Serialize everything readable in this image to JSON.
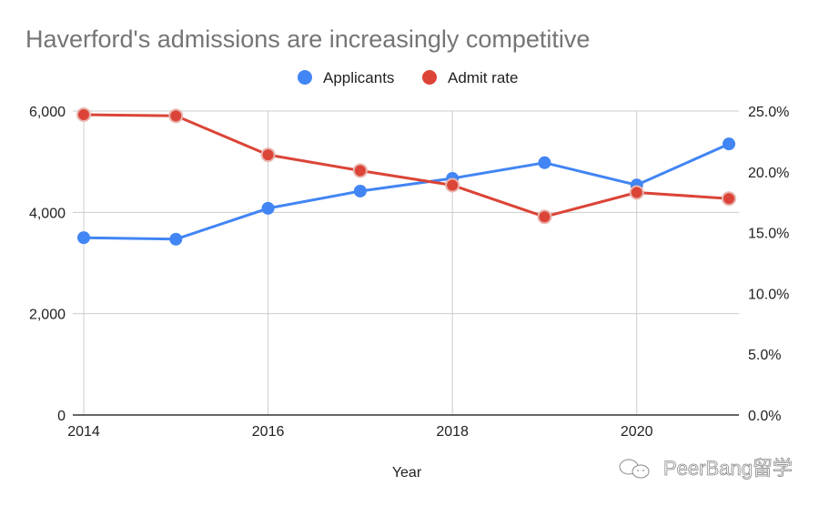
{
  "chart_data": {
    "type": "line",
    "title": "Haverford's admissions are increasingly competitive",
    "xlabel": "Year",
    "ylabel_left": "",
    "ylabel_right": "",
    "x": [
      2014,
      2015,
      2016,
      2017,
      2018,
      2019,
      2020,
      2021
    ],
    "x_ticks": [
      "2014",
      "2016",
      "2018",
      "2020"
    ],
    "x_range": [
      2014,
      2021
    ],
    "y_left_range": [
      0,
      6000
    ],
    "y_left_ticks": [
      "0",
      "2,000",
      "4,000",
      "6,000"
    ],
    "y_right_range": [
      0,
      25
    ],
    "y_right_ticks": [
      "0.0%",
      "5.0%",
      "10.0%",
      "15.0%",
      "20.0%",
      "25.0%"
    ],
    "grid": true,
    "legend_position": "top",
    "series": [
      {
        "name": "Applicants",
        "axis": "left",
        "color": "#4285f4",
        "values": [
          3500,
          3470,
          4080,
          4420,
          4670,
          4980,
          4540,
          5350
        ]
      },
      {
        "name": "Admit rate",
        "axis": "right",
        "color": "#db4437",
        "unit": "%",
        "values": [
          24.7,
          24.6,
          21.4,
          20.1,
          18.9,
          16.3,
          18.3,
          17.8
        ]
      }
    ]
  },
  "watermark": {
    "text": "PeerBang留学",
    "icon": "wechat-icon"
  }
}
